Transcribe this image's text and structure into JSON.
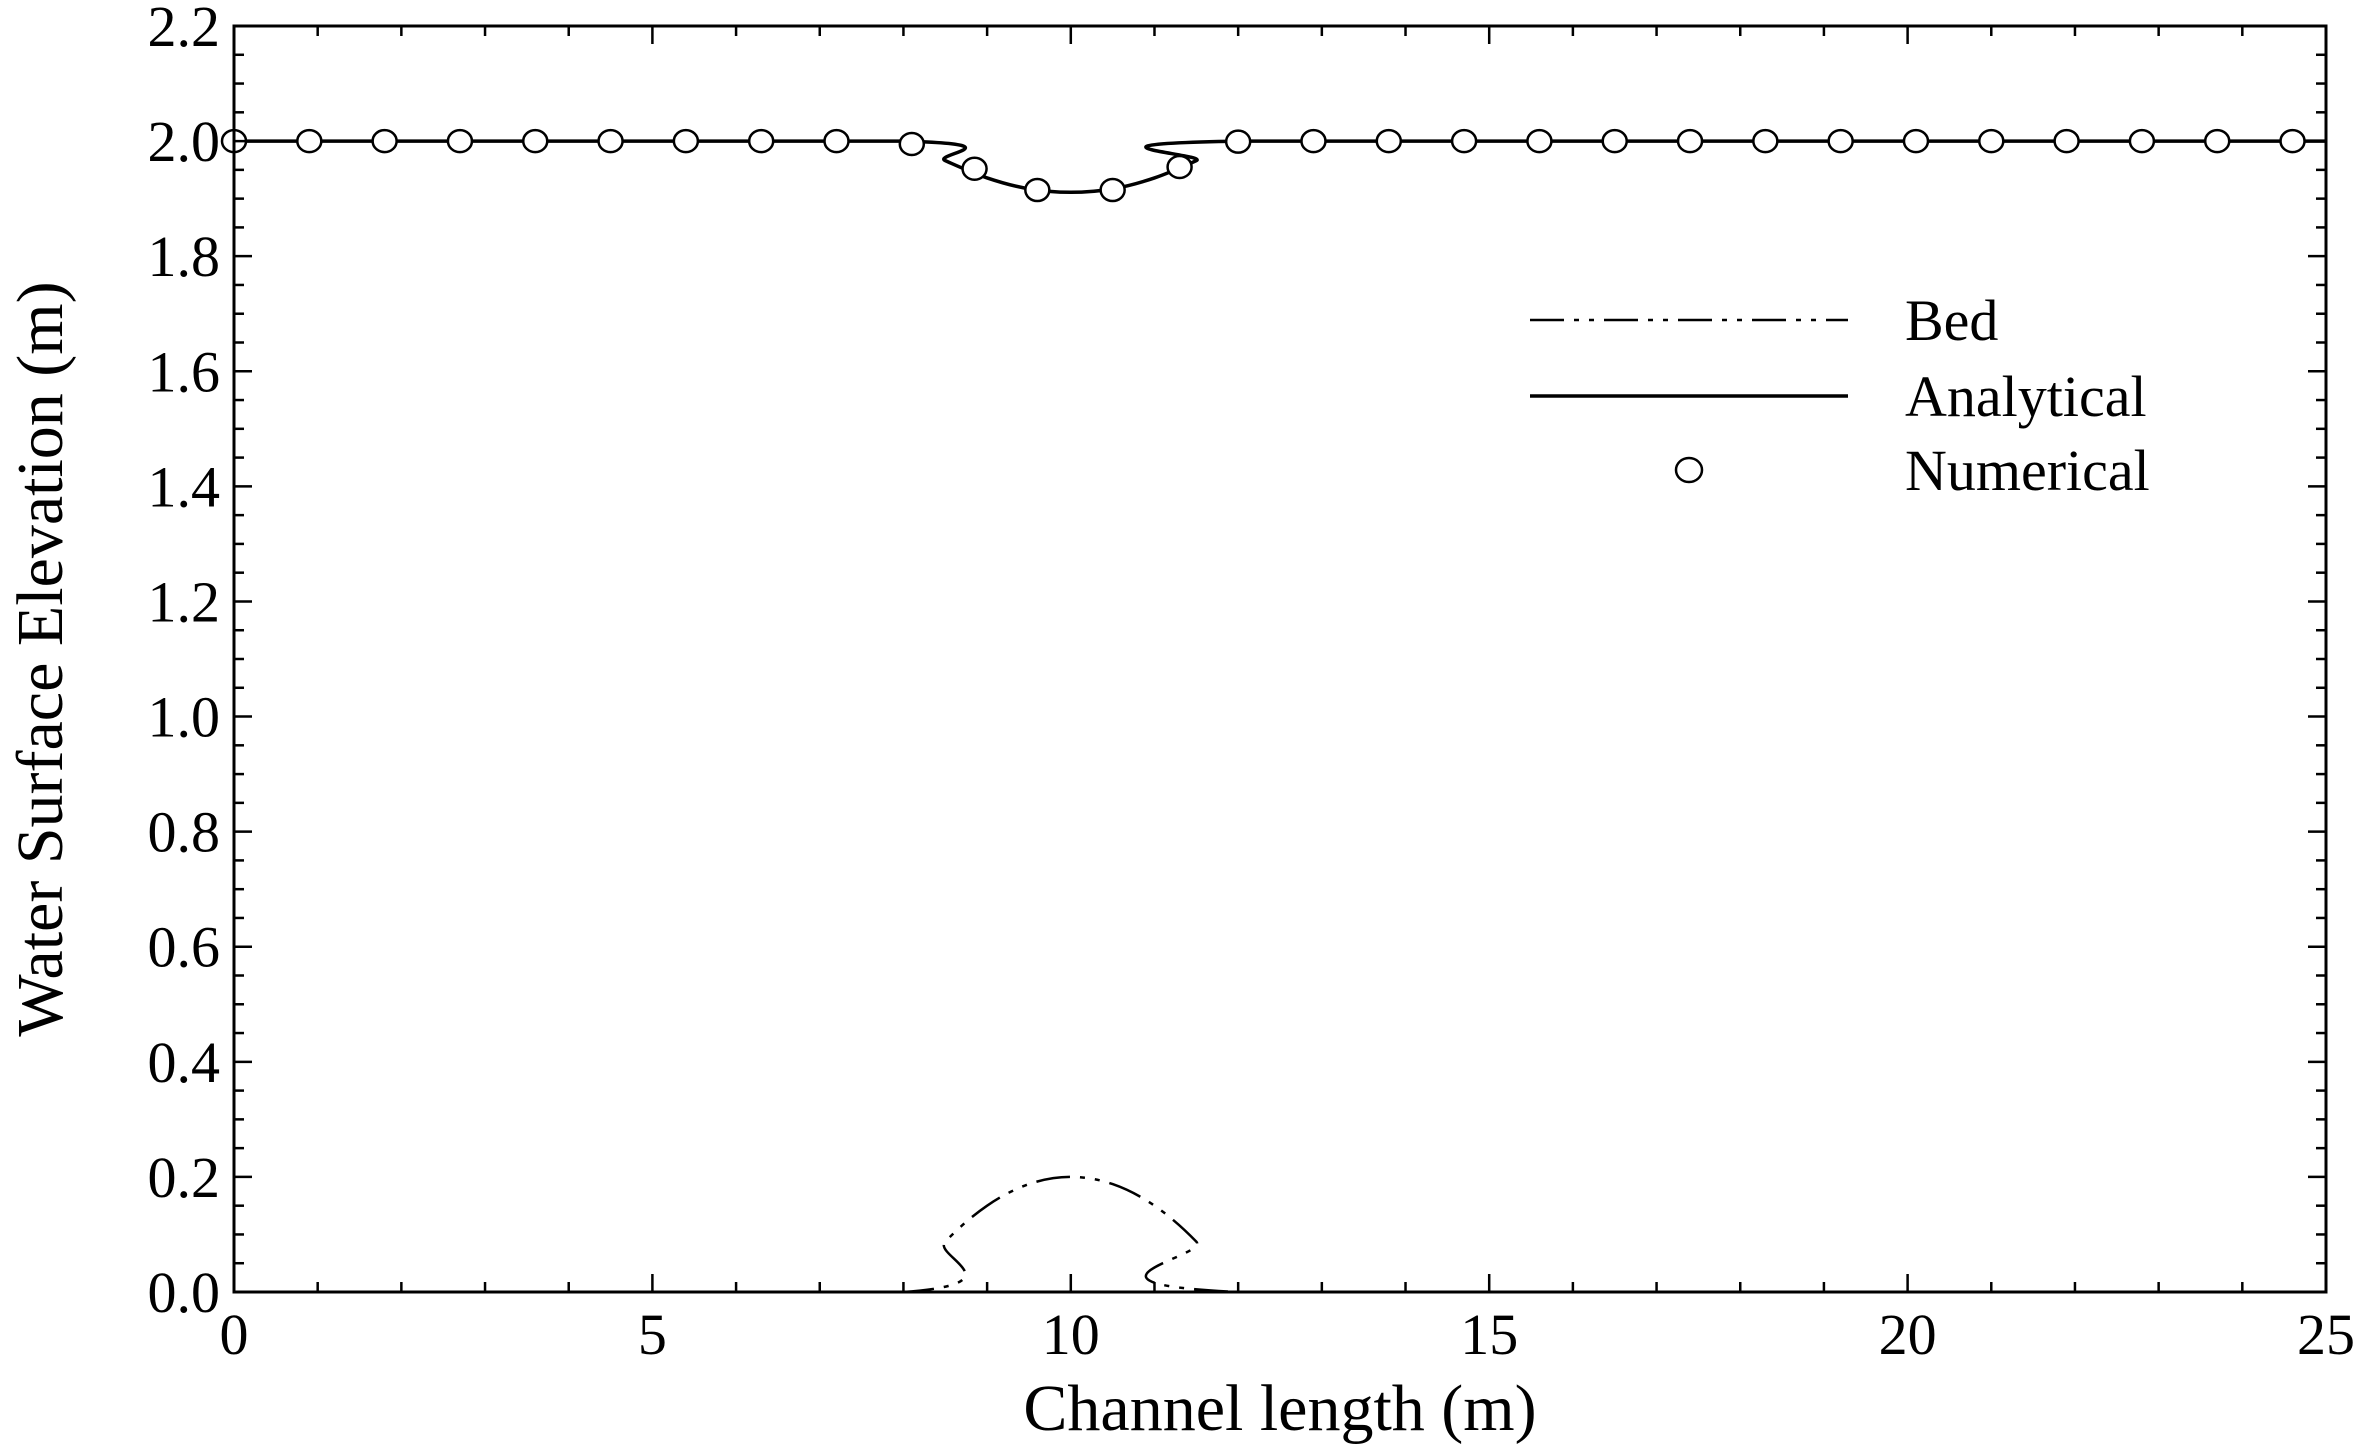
{
  "chart_data": {
    "type": "line",
    "xlabel": "Channel length (m)",
    "ylabel": "Water Surface Elevation (m)",
    "xlim": [
      0,
      25
    ],
    "ylim": [
      0,
      2.2
    ],
    "xticks": [
      "0",
      "5",
      "10",
      "15",
      "20",
      "25"
    ],
    "yticks": [
      "0.0",
      "0.2",
      "0.4",
      "0.6",
      "0.8",
      "1.0",
      "1.2",
      "1.4",
      "1.6",
      "1.8",
      "2.0",
      "2.2"
    ],
    "grid": false,
    "legend_position": "upper-right",
    "legend": [
      {
        "label": "Bed",
        "style": "dash-dot-dot"
      },
      {
        "label": "Analytical",
        "style": "solid"
      },
      {
        "label": "Numerical",
        "style": "circle-marker"
      }
    ],
    "series": [
      {
        "name": "Bed",
        "style": "dash-dot-dot",
        "x": [
          0,
          8,
          8.5,
          9,
          9.5,
          10,
          10.5,
          11,
          11.5,
          12,
          25
        ],
        "y": [
          0,
          0,
          0.0875,
          0.15,
          0.1875,
          0.2,
          0.1875,
          0.15,
          0.0875,
          0,
          0
        ]
      },
      {
        "name": "Analytical",
        "style": "solid",
        "x": [
          0,
          8,
          8.5,
          9,
          9.5,
          10,
          10.5,
          11,
          11.5,
          12,
          25
        ],
        "y": [
          2.0,
          2.0,
          1.966,
          1.936,
          1.917,
          1.911,
          1.917,
          1.936,
          1.966,
          2.0,
          2.0
        ]
      },
      {
        "name": "Numerical",
        "style": "circle-marker",
        "x": [
          0,
          0.9,
          1.8,
          2.7,
          3.6,
          4.5,
          5.4,
          6.3,
          7.2,
          8.1,
          8.85,
          9.6,
          10.5,
          11.3,
          12.0,
          12.9,
          13.8,
          14.7,
          15.6,
          16.5,
          17.4,
          18.3,
          19.2,
          20.1,
          21.0,
          21.9,
          22.8,
          23.7,
          24.6
        ],
        "y": [
          2.0,
          2.0,
          2.0,
          2.0,
          2.0,
          2.0,
          2.0,
          2.0,
          2.0,
          1.995,
          1.952,
          1.915,
          1.915,
          1.955,
          1.999,
          2.0,
          2.0,
          2.0,
          2.0,
          2.0,
          2.0,
          2.0,
          2.0,
          2.0,
          2.0,
          2.0,
          2.0,
          2.0,
          2.0
        ]
      }
    ]
  }
}
